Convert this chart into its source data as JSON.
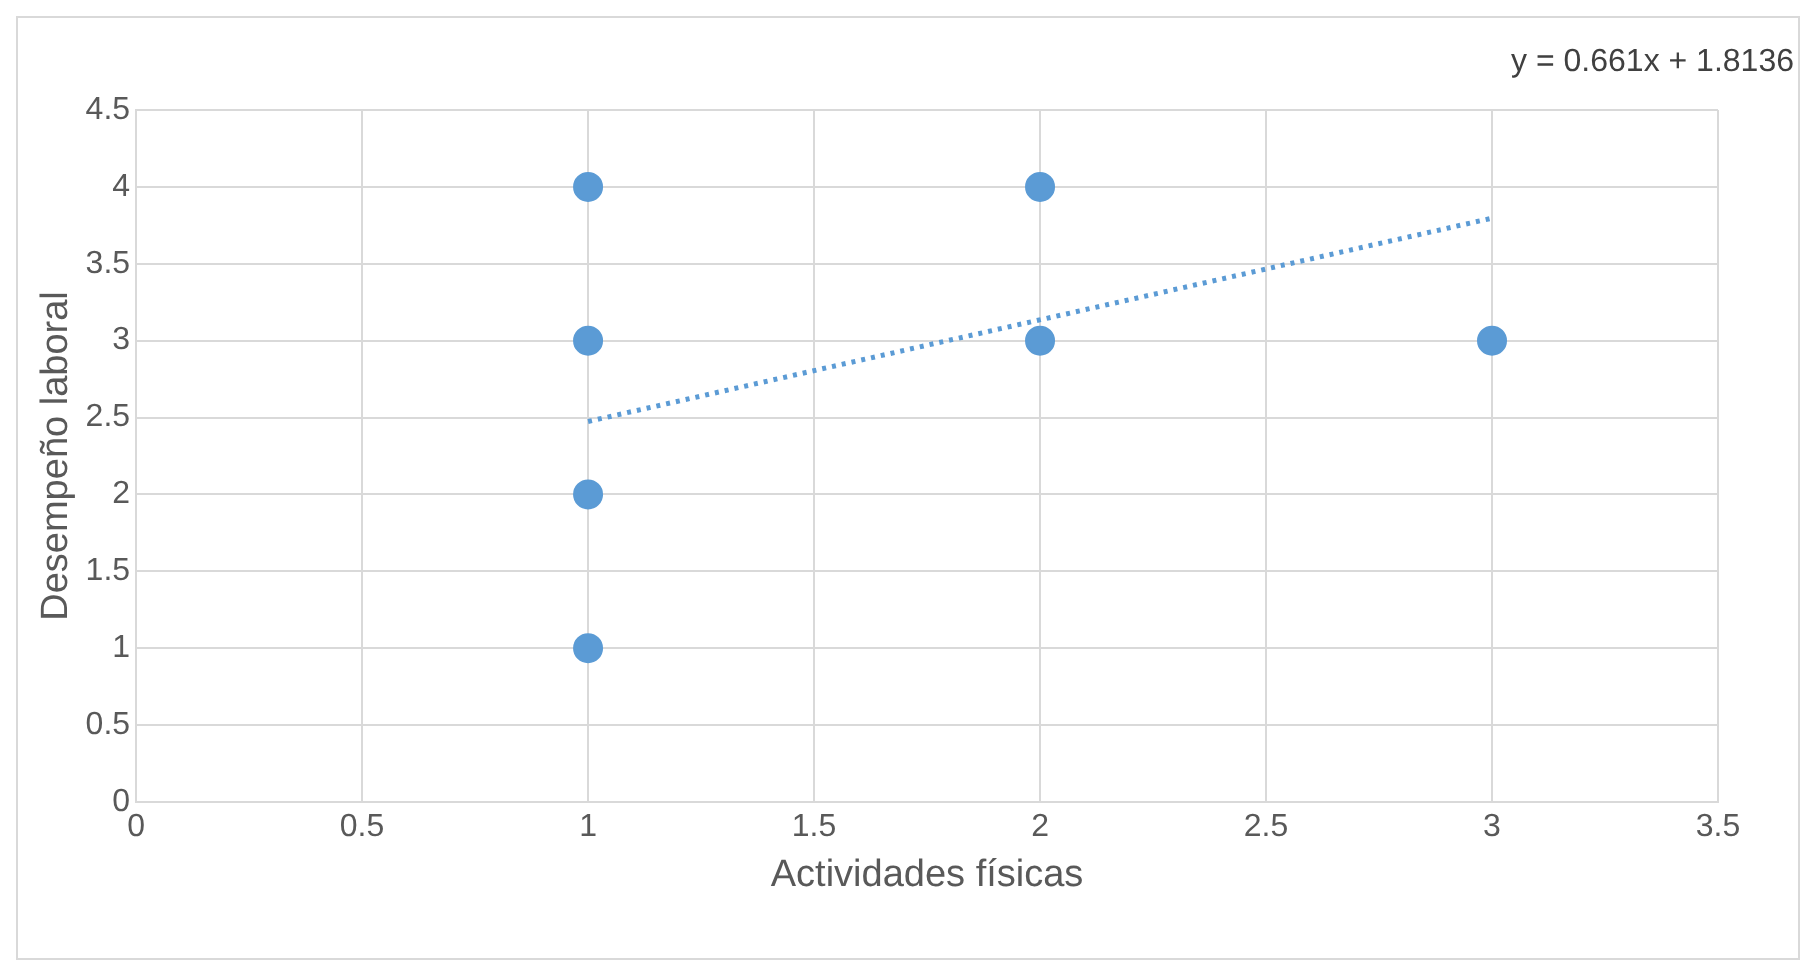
{
  "chart_data": {
    "type": "scatter",
    "xlabel": "Actividades físicas",
    "ylabel": "Desempeño laboral",
    "annotations": [
      "y = 0.661x + 1.8136"
    ],
    "xlim": [
      0,
      3.5
    ],
    "xticks": [
      0,
      0.5,
      1,
      1.5,
      2,
      2.5,
      3,
      3.5
    ],
    "ylim": [
      0,
      4.5
    ],
    "yticks": [
      0,
      0.5,
      1,
      1.5,
      2,
      2.5,
      3,
      3.5,
      4,
      4.5
    ],
    "grid": true,
    "legend": false,
    "marker": "circle",
    "series": [
      {
        "color": "#5b9bd5",
        "x": [
          1,
          1,
          1,
          1,
          2,
          2,
          3
        ],
        "values": [
          4,
          3,
          2,
          1,
          4,
          3,
          3
        ]
      },
      {
        "type": "line",
        "color": "#5b9bd5",
        "line_style": "dotted",
        "marker": "none",
        "x": [
          1,
          3
        ],
        "values": [
          2.4746,
          3.7966
        ]
      }
    ]
  }
}
